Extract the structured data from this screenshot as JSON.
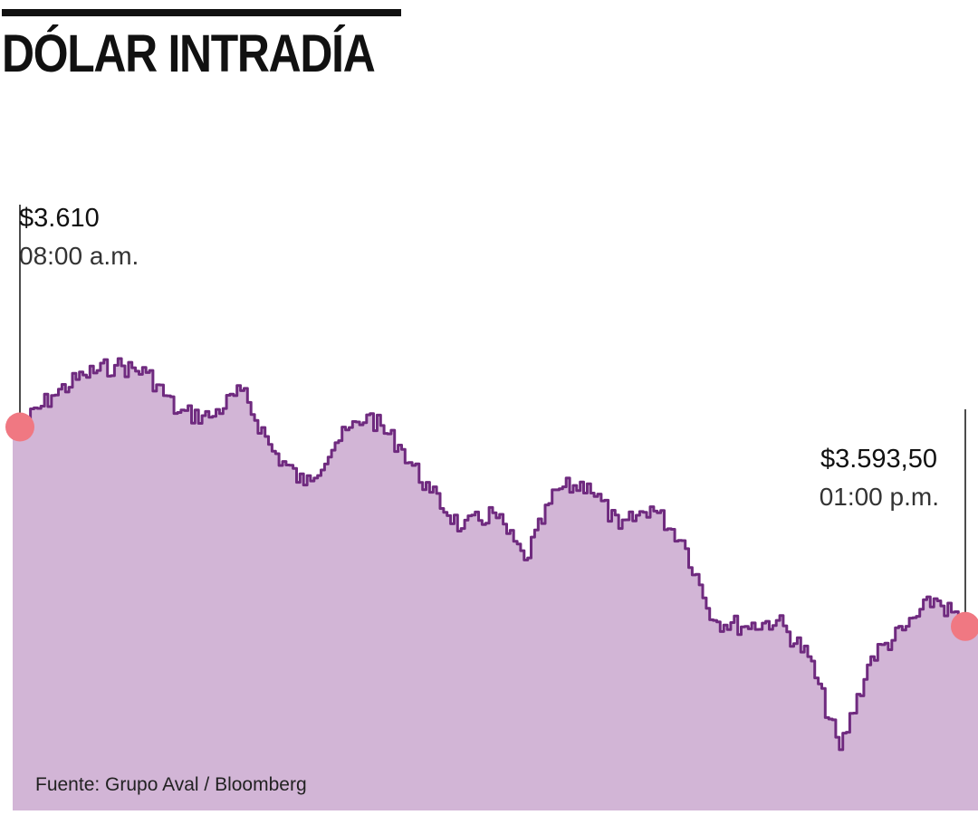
{
  "title": "DÓLAR INTRADÍA",
  "source": "Fuente: Grupo Aval / Bloomberg",
  "colors": {
    "line": "#6f2a7f",
    "area": "#d2b5d6",
    "marker": "#f07882",
    "rule": "#111111"
  },
  "chart_data": {
    "type": "area",
    "title": "DÓLAR INTRADÍA",
    "xlabel": "",
    "ylabel": "",
    "xlim": [
      "08:00 a.m.",
      "01:00 p.m."
    ],
    "ylim": [
      3580,
      3620
    ],
    "grid": false,
    "x": [
      "08:00",
      "08:10",
      "08:20",
      "08:30",
      "08:40",
      "08:50",
      "09:00",
      "09:10",
      "09:20",
      "09:30",
      "09:40",
      "09:50",
      "10:00",
      "10:10",
      "10:20",
      "10:30",
      "10:40",
      "10:50",
      "11:00",
      "11:10",
      "11:20",
      "11:30",
      "11:40",
      "11:50",
      "12:00",
      "12:10",
      "12:20",
      "12:30",
      "12:40",
      "12:50",
      "13:00"
    ],
    "values": [
      3610,
      3612.6,
      3614.3,
      3615.1,
      3614.5,
      3611.2,
      3610.8,
      3613.0,
      3608.0,
      3605.2,
      3608.7,
      3611.0,
      3608.5,
      3604.6,
      3601.6,
      3602.9,
      3599.0,
      3604.8,
      3605.3,
      3601.6,
      3603.4,
      3600.6,
      3594.0,
      3593.5,
      3594.0,
      3591.0,
      3583.3,
      3591.0,
      3593.2,
      3595.8,
      3593.5
    ],
    "annotations": [
      {
        "label": "$3.610",
        "time": "08:00 a.m.",
        "x": "08:00",
        "y": 3610
      },
      {
        "label": "$3.593,50",
        "time": "01:00 p.m.",
        "x": "13:00",
        "y": 3593.5
      }
    ]
  }
}
